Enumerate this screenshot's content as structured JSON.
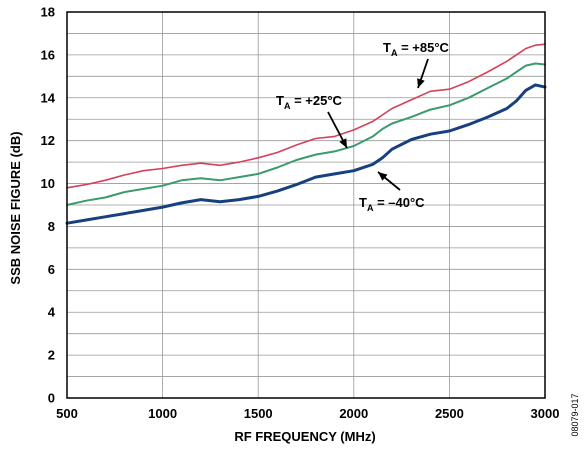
{
  "chart_data": {
    "type": "line",
    "xlabel": "RF FREQUENCY (MHz)",
    "ylabel": "SSB NOISE FIGURE (dB)",
    "xlim": [
      500,
      3000
    ],
    "ylim": [
      0,
      18
    ],
    "xticks": [
      500,
      1000,
      1500,
      2000,
      2500,
      3000
    ],
    "yticks": [
      0,
      2,
      4,
      6,
      8,
      10,
      12,
      14,
      16,
      18
    ],
    "grid": true,
    "figure_id": "08079-017",
    "x": [
      500,
      600,
      700,
      800,
      900,
      1000,
      1100,
      1200,
      1300,
      1400,
      1500,
      1600,
      1700,
      1800,
      1900,
      2000,
      2100,
      2150,
      2200,
      2300,
      2400,
      2500,
      2600,
      2700,
      2800,
      2850,
      2900,
      2950,
      3000
    ],
    "series": [
      {
        "label_main": "T",
        "label_sub": "A",
        "label_value": " = +85°C",
        "color": "#d4415a",
        "values": [
          9.8,
          9.95,
          10.15,
          10.4,
          10.6,
          10.7,
          10.85,
          10.95,
          10.85,
          11.0,
          11.2,
          11.45,
          11.8,
          12.1,
          12.2,
          12.5,
          12.9,
          13.2,
          13.5,
          13.9,
          14.3,
          14.4,
          14.75,
          15.2,
          15.7,
          16.0,
          16.3,
          16.45,
          16.5
        ]
      },
      {
        "label_main": "T",
        "label_sub": "A",
        "label_value": " = +25°C",
        "color": "#3a9b6e",
        "values": [
          9.0,
          9.2,
          9.35,
          9.6,
          9.75,
          9.9,
          10.15,
          10.25,
          10.15,
          10.3,
          10.45,
          10.75,
          11.1,
          11.35,
          11.5,
          11.75,
          12.2,
          12.55,
          12.8,
          13.1,
          13.45,
          13.65,
          14.0,
          14.45,
          14.9,
          15.2,
          15.5,
          15.6,
          15.55
        ]
      },
      {
        "label_main": "T",
        "label_sub": "A",
        "label_value": " = –40°C",
        "color": "#17407e",
        "values": [
          8.15,
          8.3,
          8.45,
          8.6,
          8.75,
          8.9,
          9.1,
          9.25,
          9.15,
          9.25,
          9.4,
          9.65,
          9.95,
          10.3,
          10.45,
          10.6,
          10.9,
          11.2,
          11.6,
          12.05,
          12.3,
          12.45,
          12.75,
          13.1,
          13.5,
          13.85,
          14.35,
          14.6,
          14.5
        ]
      }
    ]
  }
}
